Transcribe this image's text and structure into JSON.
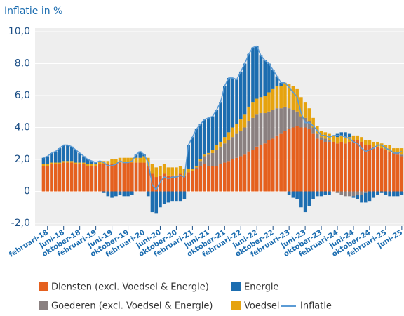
{
  "chart_data": {
    "type": "stacked_bar_line",
    "title": "Inflatie in %",
    "categories": [
      null,
      "februari-18",
      null,
      null,
      null,
      "juni-18",
      null,
      null,
      null,
      "oktober-18",
      null,
      null,
      null,
      "februari-19",
      null,
      null,
      null,
      "juni-19",
      null,
      null,
      null,
      "oktober-19",
      null,
      null,
      null,
      "februari-20",
      null,
      null,
      null,
      "juni-20",
      null,
      null,
      null,
      "oktober-20",
      null,
      null,
      null,
      "februari-21",
      null,
      null,
      null,
      "juni-21",
      null,
      null,
      null,
      "oktober-21",
      null,
      null,
      null,
      "februari-22",
      null,
      null,
      null,
      "juni-22",
      null,
      null,
      null,
      "oktober-22",
      null,
      null,
      null,
      "februari-23",
      null,
      null,
      null,
      "juni-23",
      null,
      null,
      null,
      "oktober-23",
      null,
      null,
      null,
      "februari-24",
      null,
      null,
      null,
      "juni-24",
      null,
      null,
      null,
      "oktober-24",
      null,
      null,
      null,
      "februari-25",
      null,
      null,
      null,
      "juni-25"
    ],
    "series": [
      {
        "name": "Diensten (excl. Voedsel & Energie)",
        "color": "#e5601e",
        "kind": "bar",
        "values": [
          1.6,
          1.6,
          1.7,
          1.7,
          1.7,
          1.8,
          1.8,
          1.8,
          1.7,
          1.7,
          1.7,
          1.6,
          1.6,
          1.6,
          1.7,
          1.7,
          1.7,
          1.7,
          1.7,
          1.8,
          1.8,
          1.8,
          1.8,
          1.8,
          1.8,
          1.8,
          1.6,
          1.1,
          0.9,
          1.0,
          1.1,
          1.0,
          1.0,
          1.0,
          1.1,
          1.0,
          1.2,
          1.3,
          1.4,
          1.6,
          1.7,
          1.6,
          1.6,
          1.6,
          1.7,
          1.8,
          1.9,
          2.0,
          2.1,
          2.2,
          2.3,
          2.5,
          2.6,
          2.8,
          2.9,
          3.0,
          3.2,
          3.3,
          3.5,
          3.6,
          3.8,
          3.9,
          4.0,
          4.1,
          4.0,
          4.0,
          3.9,
          3.6,
          3.3,
          3.2,
          3.1,
          3.1,
          3.1,
          3.0,
          3.1,
          3.0,
          3.1,
          3.2,
          3.2,
          3.1,
          2.9,
          2.9,
          2.8,
          2.8,
          2.7,
          2.6,
          2.5,
          2.4,
          2.3,
          2.2
        ]
      },
      {
        "name": "Goederen (excl. Voedsel & Energie)",
        "color": "#8a8080",
        "kind": "bar",
        "values": [
          0,
          0,
          0,
          0,
          0,
          0,
          0,
          0,
          0,
          0,
          0,
          0,
          0,
          0,
          0,
          0,
          0,
          0,
          0,
          0,
          0,
          0,
          0,
          0,
          0,
          0,
          0,
          0,
          0,
          0,
          0,
          0,
          0,
          0,
          0,
          0,
          0.0,
          0.0,
          0.1,
          0.3,
          0.5,
          0.7,
          0.8,
          1.0,
          1.1,
          1.2,
          1.3,
          1.4,
          1.5,
          1.6,
          1.7,
          1.9,
          2.0,
          2.0,
          2.0,
          1.9,
          1.8,
          1.8,
          1.7,
          1.6,
          1.5,
          1.3,
          1.1,
          0.9,
          0.7,
          0.6,
          0.5,
          0.4,
          0.3,
          0.2,
          0.2,
          0.1,
          0.0,
          -0.1,
          -0.2,
          -0.3,
          -0.3,
          -0.3,
          -0.2,
          -0.2,
          -0.1,
          0.0,
          0.0,
          0.0,
          0.0,
          0.0,
          0.0,
          0.0,
          0.1,
          0.1
        ]
      },
      {
        "name": "Voedsel",
        "color": "#e6a30f",
        "kind": "bar",
        "values": [
          0.1,
          0.1,
          0.1,
          0.1,
          0.1,
          0.1,
          0.1,
          0.1,
          0.1,
          0.1,
          0.1,
          0.1,
          0.1,
          0.1,
          0.2,
          0.2,
          0.2,
          0.3,
          0.3,
          0.3,
          0.3,
          0.3,
          0.3,
          0.3,
          0.3,
          0.4,
          0.5,
          0.6,
          0.6,
          0.6,
          0.6,
          0.5,
          0.5,
          0.5,
          0.5,
          0.4,
          0.2,
          0.1,
          0.1,
          0.1,
          0.1,
          0.1,
          0.2,
          0.3,
          0.3,
          0.4,
          0.5,
          0.6,
          0.6,
          0.7,
          0.8,
          0.9,
          1.0,
          1.0,
          1.0,
          1.1,
          1.2,
          1.3,
          1.4,
          1.4,
          1.5,
          1.5,
          1.5,
          1.4,
          1.2,
          1.0,
          0.8,
          0.6,
          0.5,
          0.4,
          0.4,
          0.4,
          0.4,
          0.4,
          0.4,
          0.4,
          0.3,
          0.3,
          0.3,
          0.3,
          0.3,
          0.3,
          0.3,
          0.3,
          0.3,
          0.3,
          0.4,
          0.3,
          0.3,
          0.4
        ]
      },
      {
        "name": "Energie",
        "color": "#1c6db0",
        "kind": "bar",
        "values": [
          0.4,
          0.5,
          0.6,
          0.7,
          0.9,
          1.0,
          1.0,
          0.9,
          0.8,
          0.6,
          0.4,
          0.3,
          0.2,
          0.1,
          0.0,
          -0.1,
          -0.3,
          -0.4,
          -0.3,
          -0.2,
          -0.3,
          -0.3,
          -0.2,
          0.2,
          0.4,
          0.1,
          -0.3,
          -1.3,
          -1.4,
          -1.0,
          -0.8,
          -0.7,
          -0.6,
          -0.6,
          -0.6,
          -0.5,
          1.5,
          2.0,
          2.3,
          2.2,
          2.2,
          2.2,
          2.1,
          2.2,
          2.5,
          3.2,
          3.4,
          3.1,
          2.8,
          3.0,
          3.2,
          3.3,
          3.4,
          3.3,
          2.6,
          2.2,
          1.8,
          1.2,
          0.6,
          0.2,
          0.0,
          -0.2,
          -0.4,
          -0.5,
          -1.0,
          -1.3,
          -0.9,
          -0.5,
          -0.3,
          -0.3,
          -0.2,
          -0.2,
          0.0,
          0.2,
          0.2,
          0.3,
          0.2,
          -0.1,
          -0.3,
          -0.5,
          -0.6,
          -0.6,
          -0.4,
          -0.2,
          -0.1,
          -0.2,
          -0.3,
          -0.3,
          -0.3,
          -0.2
        ]
      },
      {
        "name": "Inflatie",
        "color": "#5b9bd5",
        "kind": "line",
        "values": [
          2.1,
          2.2,
          2.4,
          2.5,
          2.7,
          2.9,
          2.9,
          2.8,
          2.6,
          2.4,
          2.2,
          2.0,
          1.9,
          1.8,
          1.9,
          1.8,
          1.6,
          1.6,
          1.7,
          1.9,
          1.8,
          1.8,
          1.9,
          2.3,
          2.5,
          2.3,
          1.8,
          0.4,
          0.1,
          0.6,
          0.9,
          0.8,
          0.9,
          0.9,
          1.0,
          0.9,
          2.9,
          3.4,
          3.9,
          4.2,
          4.5,
          4.6,
          4.7,
          5.1,
          5.6,
          6.6,
          7.1,
          7.1,
          7.0,
          7.5,
          8.0,
          8.6,
          9.0,
          9.1,
          8.5,
          8.2,
          8.0,
          7.6,
          7.2,
          6.8,
          6.8,
          6.5,
          6.2,
          5.9,
          4.9,
          4.3,
          4.3,
          4.1,
          3.8,
          3.5,
          3.5,
          3.4,
          3.5,
          3.5,
          3.5,
          3.4,
          3.3,
          3.1,
          3.0,
          2.7,
          2.5,
          2.6,
          2.7,
          2.9,
          2.9,
          2.7,
          2.6,
          2.4,
          2.4,
          2.5
        ]
      }
    ],
    "ylim": [
      -2,
      10
    ],
    "yticks": [
      {
        "value": -2,
        "label": "-2,0"
      },
      0,
      {
        "value": 2,
        "label": "2,0"
      },
      {
        "value": 4,
        "label": "4,0"
      },
      {
        "value": 6,
        "label": "6,0"
      },
      {
        "value": 8,
        "label": "8,0"
      },
      {
        "value": 10,
        "label": "10,0"
      }
    ],
    "grid": true
  }
}
